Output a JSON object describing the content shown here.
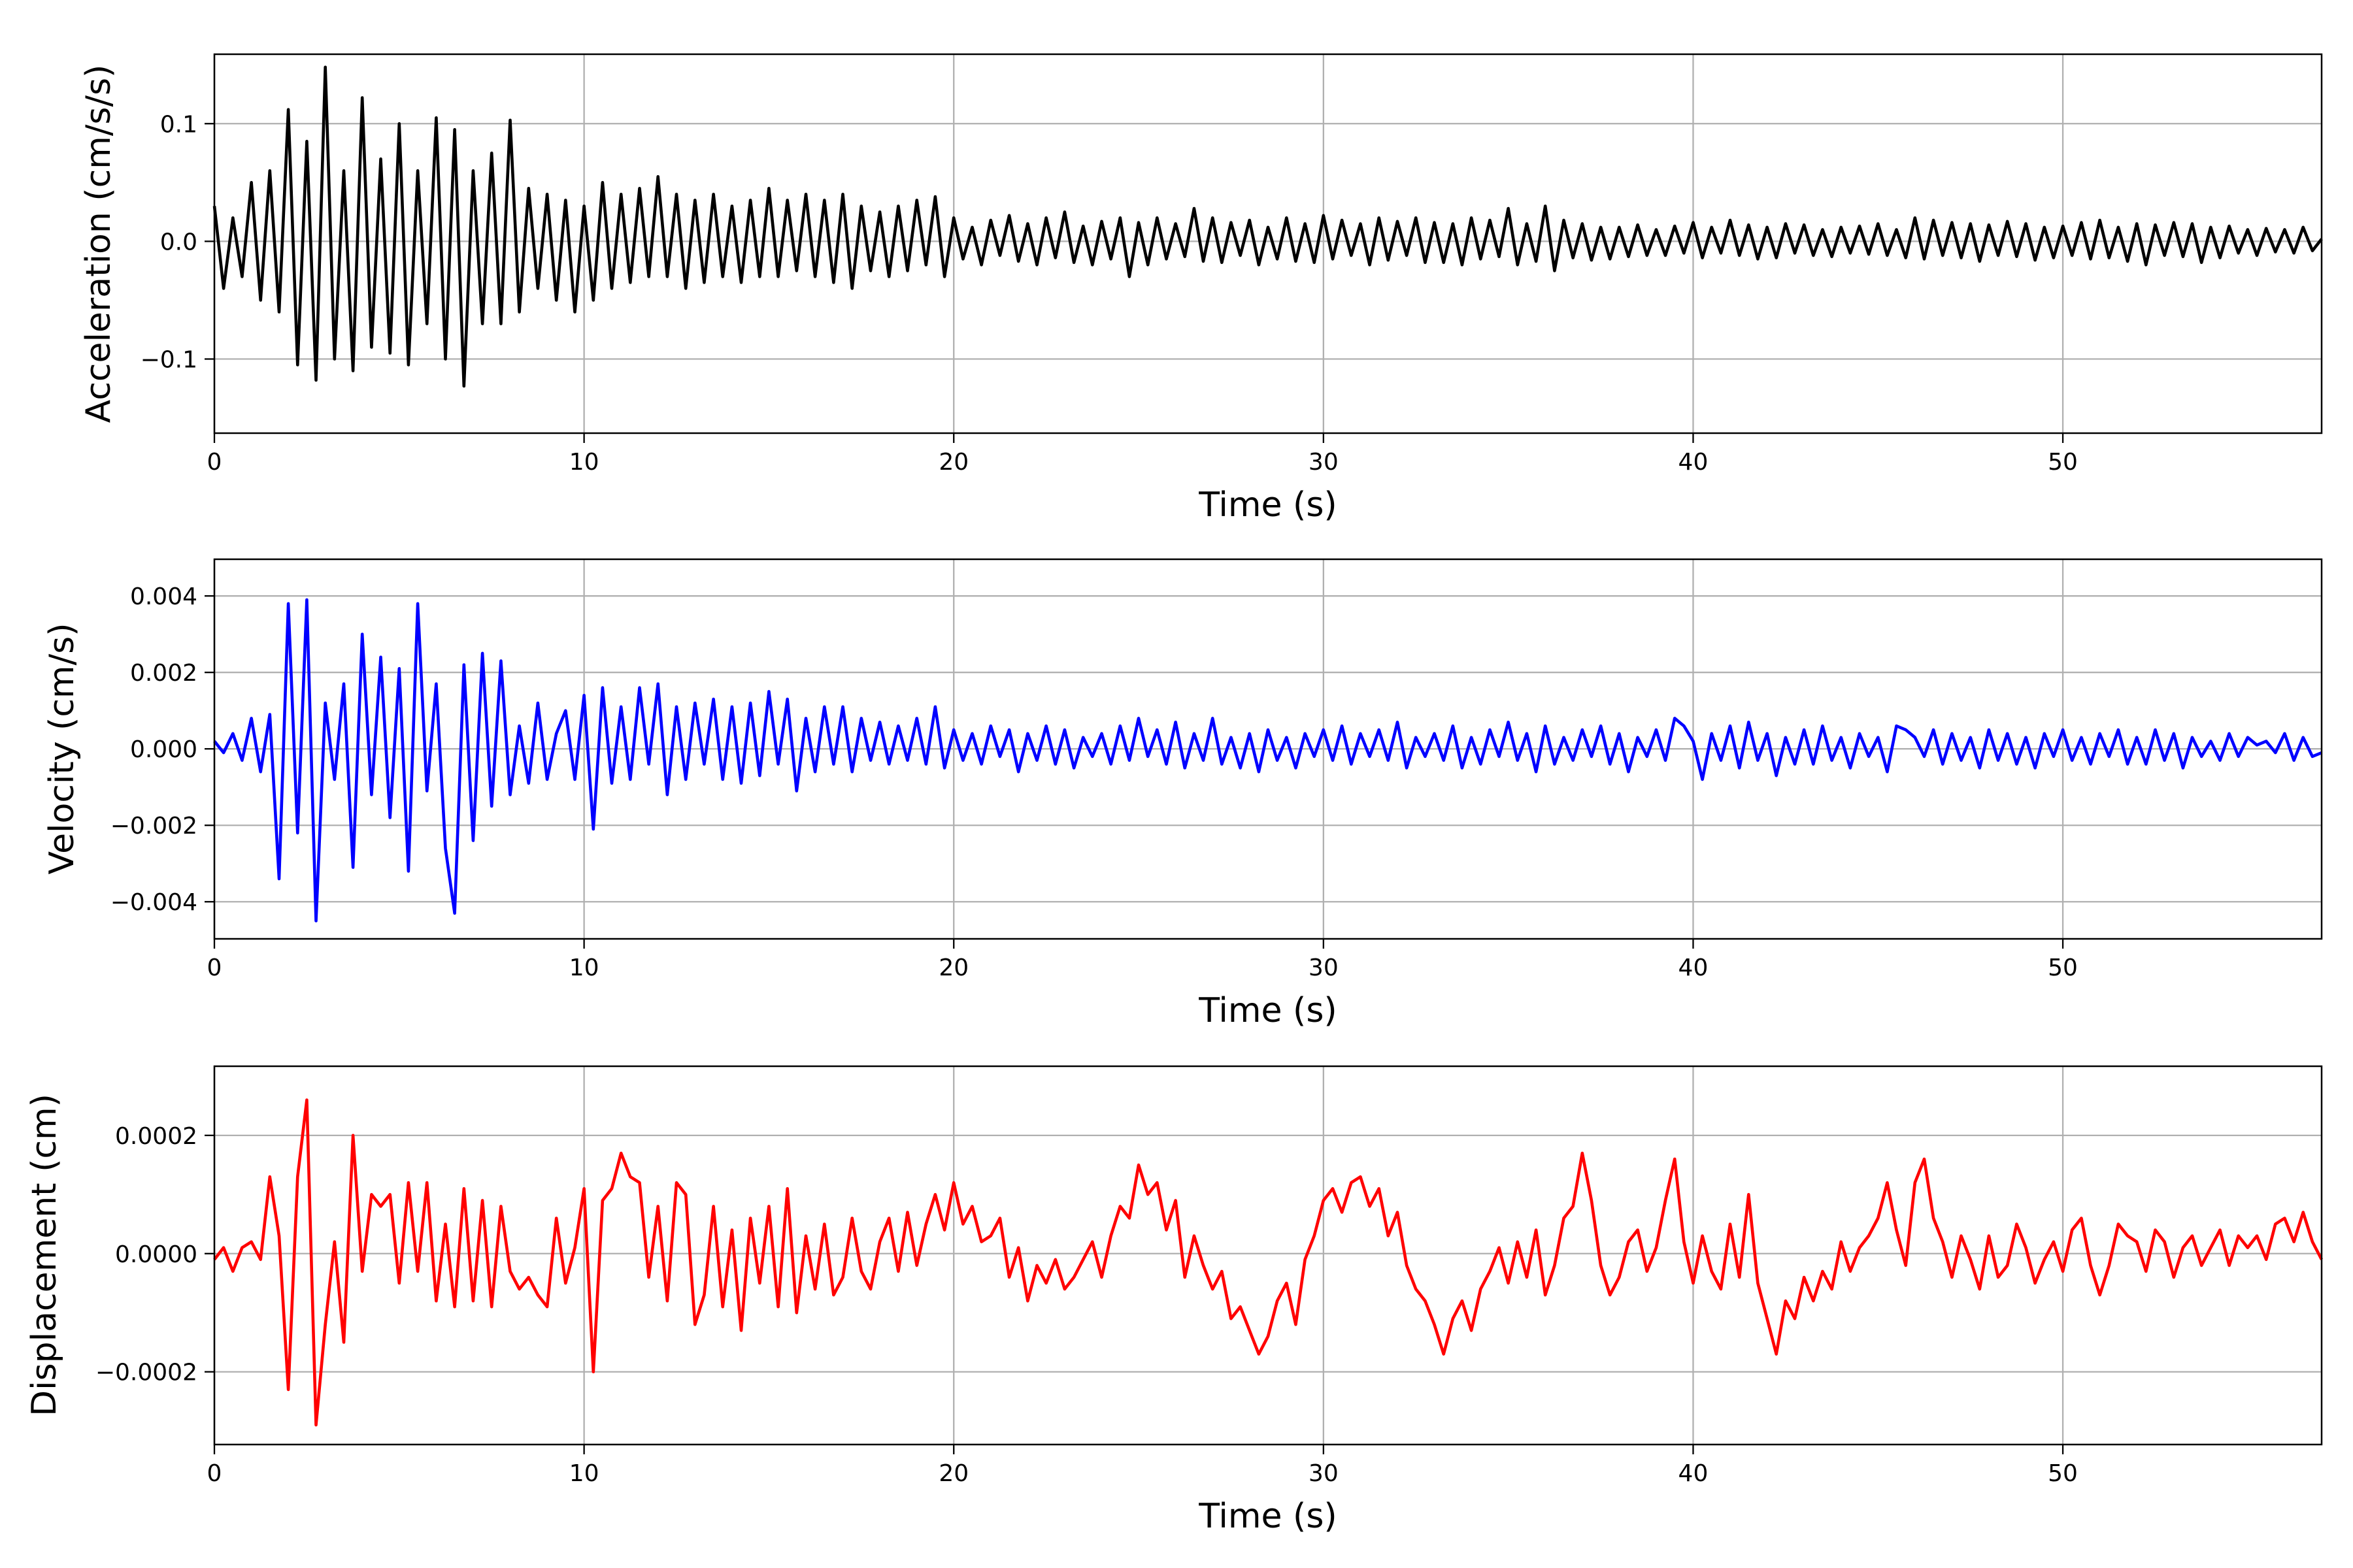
{
  "chart_data": [
    {
      "type": "line",
      "title": "",
      "xlabel": "Time (s)",
      "ylabel": "Acceleration (cm/s/s)",
      "xlim": [
        0,
        57
      ],
      "ylim": [
        -0.163,
        0.159
      ],
      "xticks": [
        0,
        10,
        20,
        30,
        40,
        50
      ],
      "xtick_labels": [
        "0",
        "10",
        "20",
        "30",
        "40",
        "50"
      ],
      "yticks": [
        -0.1,
        0.0,
        0.1
      ],
      "ytick_labels": [
        "−0.1",
        "0.0",
        "0.1"
      ],
      "grid": true,
      "color": "#000000",
      "series": [
        {
          "name": "acceleration",
          "t0": 0,
          "dt": 0.25,
          "values": [
            0.03,
            -0.04,
            0.02,
            -0.03,
            0.05,
            -0.05,
            0.06,
            -0.06,
            0.112,
            -0.105,
            0.085,
            -0.118,
            0.148,
            -0.1,
            0.06,
            -0.11,
            0.122,
            -0.09,
            0.07,
            -0.095,
            0.1,
            -0.105,
            0.06,
            -0.07,
            0.105,
            -0.1,
            0.095,
            -0.123,
            0.06,
            -0.07,
            0.075,
            -0.07,
            0.103,
            -0.06,
            0.045,
            -0.04,
            0.04,
            -0.05,
            0.035,
            -0.06,
            0.03,
            -0.05,
            0.05,
            -0.04,
            0.04,
            -0.035,
            0.045,
            -0.03,
            0.055,
            -0.03,
            0.04,
            -0.04,
            0.035,
            -0.035,
            0.04,
            -0.03,
            0.03,
            -0.035,
            0.035,
            -0.03,
            0.045,
            -0.03,
            0.035,
            -0.025,
            0.04,
            -0.03,
            0.035,
            -0.035,
            0.04,
            -0.04,
            0.03,
            -0.025,
            0.025,
            -0.03,
            0.03,
            -0.025,
            0.035,
            -0.02,
            0.038,
            -0.03,
            0.02,
            -0.015,
            0.012,
            -0.02,
            0.018,
            -0.012,
            0.022,
            -0.017,
            0.015,
            -0.02,
            0.02,
            -0.014,
            0.025,
            -0.018,
            0.013,
            -0.02,
            0.017,
            -0.015,
            0.02,
            -0.03,
            0.016,
            -0.02,
            0.02,
            -0.015,
            0.015,
            -0.013,
            0.028,
            -0.017,
            0.02,
            -0.018,
            0.016,
            -0.012,
            0.018,
            -0.02,
            0.012,
            -0.015,
            0.02,
            -0.017,
            0.015,
            -0.018,
            0.022,
            -0.015,
            0.018,
            -0.012,
            0.015,
            -0.02,
            0.02,
            -0.016,
            0.017,
            -0.012,
            0.02,
            -0.018,
            0.016,
            -0.018,
            0.015,
            -0.02,
            0.02,
            -0.015,
            0.018,
            -0.013,
            0.028,
            -0.02,
            0.015,
            -0.017,
            0.03,
            -0.025,
            0.018,
            -0.014,
            0.015,
            -0.016,
            0.012,
            -0.015,
            0.012,
            -0.013,
            0.014,
            -0.012,
            0.01,
            -0.012,
            0.013,
            -0.01,
            0.016,
            -0.014,
            0.012,
            -0.01,
            0.018,
            -0.012,
            0.014,
            -0.015,
            0.012,
            -0.014,
            0.015,
            -0.01,
            0.014,
            -0.012,
            0.01,
            -0.013,
            0.012,
            -0.01,
            0.013,
            -0.011,
            0.015,
            -0.012,
            0.01,
            -0.014,
            0.02,
            -0.015,
            0.018,
            -0.012,
            0.016,
            -0.014,
            0.015,
            -0.017,
            0.014,
            -0.012,
            0.017,
            -0.013,
            0.015,
            -0.016,
            0.012,
            -0.014,
            0.013,
            -0.012,
            0.016,
            -0.015,
            0.018,
            -0.014,
            0.012,
            -0.017,
            0.015,
            -0.02,
            0.014,
            -0.012,
            0.016,
            -0.013,
            0.015,
            -0.018,
            0.012,
            -0.014,
            0.013,
            -0.01,
            0.01,
            -0.012,
            0.011,
            -0.009,
            0.01,
            -0.01,
            0.012,
            -0.008,
            0.002
          ]
        }
      ]
    },
    {
      "type": "line",
      "title": "",
      "xlabel": "Time (s)",
      "ylabel": "Velocity (cm/s)",
      "xlim": [
        0,
        57
      ],
      "ylim": [
        -0.00497,
        0.00496
      ],
      "xticks": [
        0,
        10,
        20,
        30,
        40,
        50
      ],
      "xtick_labels": [
        "0",
        "10",
        "20",
        "30",
        "40",
        "50"
      ],
      "yticks": [
        -0.004,
        -0.002,
        0.0,
        0.002,
        0.004
      ],
      "ytick_labels": [
        "−0.004",
        "−0.002",
        "0.000",
        "0.002",
        "0.004"
      ],
      "grid": true,
      "color": "#0000ff",
      "series": [
        {
          "name": "velocity",
          "t0": 0,
          "dt": 0.25,
          "values": [
            0.0002,
            -0.0001,
            0.0004,
            -0.0003,
            0.0008,
            -0.0006,
            0.0009,
            -0.0034,
            0.0038,
            -0.0022,
            0.0039,
            -0.0045,
            0.0012,
            -0.0008,
            0.0017,
            -0.0031,
            0.003,
            -0.0012,
            0.0024,
            -0.0018,
            0.0021,
            -0.0032,
            0.0038,
            -0.0011,
            0.0017,
            -0.0026,
            -0.0043,
            0.0022,
            -0.0024,
            0.0025,
            -0.0015,
            0.0023,
            -0.0012,
            0.0006,
            -0.0009,
            0.0012,
            -0.0008,
            0.0004,
            0.001,
            -0.0008,
            0.0014,
            -0.0021,
            0.0016,
            -0.0009,
            0.0011,
            -0.0008,
            0.0016,
            -0.0004,
            0.0017,
            -0.0012,
            0.0011,
            -0.0008,
            0.0012,
            -0.0004,
            0.0013,
            -0.0008,
            0.0011,
            -0.0009,
            0.0012,
            -0.0007,
            0.0015,
            -0.0004,
            0.0013,
            -0.0011,
            0.0008,
            -0.0006,
            0.0011,
            -0.0004,
            0.0011,
            -0.0006,
            0.0008,
            -0.0003,
            0.0007,
            -0.0004,
            0.0006,
            -0.0003,
            0.0008,
            -0.0004,
            0.0011,
            -0.0005,
            0.0005,
            -0.0003,
            0.0004,
            -0.0004,
            0.0006,
            -0.0002,
            0.0005,
            -0.0006,
            0.0004,
            -0.0003,
            0.0006,
            -0.0004,
            0.0005,
            -0.0005,
            0.0003,
            -0.0002,
            0.0004,
            -0.0004,
            0.0006,
            -0.0003,
            0.0008,
            -0.0002,
            0.0005,
            -0.0004,
            0.0007,
            -0.0005,
            0.0004,
            -0.0003,
            0.0008,
            -0.0004,
            0.0003,
            -0.0005,
            0.0004,
            -0.0006,
            0.0005,
            -0.0003,
            0.0003,
            -0.0005,
            0.0004,
            -0.0002,
            0.0005,
            -0.0003,
            0.0006,
            -0.0004,
            0.0004,
            -0.0002,
            0.0005,
            -0.0003,
            0.0007,
            -0.0005,
            0.0003,
            -0.0002,
            0.0004,
            -0.0003,
            0.0006,
            -0.0005,
            0.0003,
            -0.0004,
            0.0005,
            -0.0002,
            0.0007,
            -0.0003,
            0.0004,
            -0.0006,
            0.0006,
            -0.0004,
            0.0003,
            -0.0003,
            0.0005,
            -0.0002,
            0.0006,
            -0.0004,
            0.0004,
            -0.0006,
            0.0003,
            -0.0002,
            0.0005,
            -0.0003,
            0.0008,
            0.0006,
            0.0002,
            -0.0008,
            0.0004,
            -0.0003,
            0.0006,
            -0.0005,
            0.0007,
            -0.0003,
            0.0004,
            -0.0007,
            0.0003,
            -0.0004,
            0.0005,
            -0.0004,
            0.0006,
            -0.0003,
            0.0003,
            -0.0005,
            0.0004,
            -0.0002,
            0.0003,
            -0.0006,
            0.0006,
            0.0005,
            0.0003,
            -0.0002,
            0.0005,
            -0.0004,
            0.0004,
            -0.0003,
            0.0003,
            -0.0005,
            0.0005,
            -0.0003,
            0.0004,
            -0.0004,
            0.0003,
            -0.0005,
            0.0004,
            -0.0002,
            0.0005,
            -0.0003,
            0.0003,
            -0.0004,
            0.0004,
            -0.0002,
            0.0005,
            -0.0004,
            0.0003,
            -0.0004,
            0.0005,
            -0.0003,
            0.0004,
            -0.0005,
            0.0003,
            -0.0002,
            0.0002,
            -0.0003,
            0.0004,
            -0.0002,
            0.0003,
            0.0001,
            0.0002,
            -0.0001,
            0.0004,
            -0.0003,
            0.0003,
            -0.0002,
            -0.0001
          ]
        }
      ]
    },
    {
      "type": "line",
      "title": "",
      "xlabel": "Time (s)",
      "ylabel": "Displacement (cm)",
      "xlim": [
        0,
        57
      ],
      "ylim": [
        -0.000323,
        0.000317
      ],
      "xticks": [
        0,
        10,
        20,
        30,
        40,
        50
      ],
      "xtick_labels": [
        "0",
        "10",
        "20",
        "30",
        "40",
        "50"
      ],
      "yticks": [
        -0.0002,
        0.0,
        0.0002
      ],
      "ytick_labels": [
        "−0.0002",
        "0.0000",
        "0.0002"
      ],
      "grid": true,
      "color": "#ff0000",
      "series": [
        {
          "name": "displacement",
          "t0": 0,
          "dt": 0.25,
          "values": [
            -1e-05,
            1e-05,
            -3e-05,
            1e-05,
            2e-05,
            -1e-05,
            0.00013,
            3e-05,
            -0.00023,
            0.00013,
            0.00026,
            -0.00029,
            -0.00012,
            2e-05,
            -0.00015,
            0.0002,
            -3e-05,
            0.0001,
            8e-05,
            0.0001,
            -5e-05,
            0.00012,
            -3e-05,
            0.00012,
            -8e-05,
            5e-05,
            -9e-05,
            0.00011,
            -8e-05,
            9e-05,
            -9e-05,
            8e-05,
            -3e-05,
            -6e-05,
            -4e-05,
            -7e-05,
            -9e-05,
            6e-05,
            -5e-05,
            1e-05,
            0.00011,
            -0.0002,
            9e-05,
            0.00011,
            0.00017,
            0.00013,
            0.00012,
            -4e-05,
            8e-05,
            -8e-05,
            0.00012,
            0.0001,
            -0.00012,
            -7e-05,
            8e-05,
            -9e-05,
            4e-05,
            -0.00013,
            6e-05,
            -5e-05,
            8e-05,
            -9e-05,
            0.00011,
            -0.0001,
            3e-05,
            -6e-05,
            5e-05,
            -7e-05,
            -4e-05,
            6e-05,
            -3e-05,
            -6e-05,
            2e-05,
            6e-05,
            -3e-05,
            7e-05,
            -2e-05,
            5e-05,
            0.0001,
            4e-05,
            0.00012,
            5e-05,
            8e-05,
            2e-05,
            3e-05,
            6e-05,
            -4e-05,
            1e-05,
            -8e-05,
            -2e-05,
            -5e-05,
            -1e-05,
            -6e-05,
            -4e-05,
            -1e-05,
            2e-05,
            -4e-05,
            3e-05,
            8e-05,
            6e-05,
            0.00015,
            0.0001,
            0.00012,
            4e-05,
            9e-05,
            -4e-05,
            3e-05,
            -2e-05,
            -6e-05,
            -3e-05,
            -0.00011,
            -9e-05,
            -0.00013,
            -0.00017,
            -0.00014,
            -8e-05,
            -5e-05,
            -0.00012,
            -1e-05,
            3e-05,
            9e-05,
            0.00011,
            7e-05,
            0.00012,
            0.00013,
            8e-05,
            0.00011,
            3e-05,
            7e-05,
            -2e-05,
            -6e-05,
            -8e-05,
            -0.00012,
            -0.00017,
            -0.00011,
            -8e-05,
            -0.00013,
            -6e-05,
            -3e-05,
            1e-05,
            -5e-05,
            2e-05,
            -4e-05,
            4e-05,
            -7e-05,
            -2e-05,
            6e-05,
            8e-05,
            0.00017,
            9e-05,
            -2e-05,
            -7e-05,
            -4e-05,
            2e-05,
            4e-05,
            -3e-05,
            1e-05,
            9e-05,
            0.00016,
            2e-05,
            -5e-05,
            3e-05,
            -3e-05,
            -6e-05,
            5e-05,
            -4e-05,
            0.0001,
            -5e-05,
            -0.00011,
            -0.00017,
            -8e-05,
            -0.00011,
            -4e-05,
            -8e-05,
            -3e-05,
            -6e-05,
            2e-05,
            -3e-05,
            1e-05,
            3e-05,
            6e-05,
            0.00012,
            4e-05,
            -2e-05,
            0.00012,
            0.00016,
            6e-05,
            2e-05,
            -4e-05,
            3e-05,
            -1e-05,
            -6e-05,
            3e-05,
            -4e-05,
            -2e-05,
            5e-05,
            1e-05,
            -5e-05,
            -1e-05,
            2e-05,
            -3e-05,
            4e-05,
            6e-05,
            -2e-05,
            -7e-05,
            -2e-05,
            5e-05,
            3e-05,
            2e-05,
            -3e-05,
            4e-05,
            2e-05,
            -4e-05,
            1e-05,
            3e-05,
            -2e-05,
            1e-05,
            4e-05,
            -2e-05,
            3e-05,
            1e-05,
            3e-05,
            -1e-05,
            5e-05,
            6e-05,
            2e-05,
            7e-05,
            2e-05,
            -1e-05
          ]
        }
      ]
    }
  ]
}
